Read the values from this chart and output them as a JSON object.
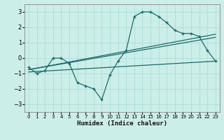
{
  "xlabel": "Humidex (Indice chaleur)",
  "bg_color": "#cceee8",
  "grid_color": "#aaddda",
  "line_color": "#1a6b6b",
  "xlim": [
    -0.5,
    23.5
  ],
  "ylim": [
    -3.5,
    3.5
  ],
  "yticks": [
    -3,
    -2,
    -1,
    0,
    1,
    2,
    3
  ],
  "xticks": [
    0,
    1,
    2,
    3,
    4,
    5,
    6,
    7,
    8,
    9,
    10,
    11,
    12,
    13,
    14,
    15,
    16,
    17,
    18,
    19,
    20,
    21,
    22,
    23
  ],
  "series1_x": [
    0,
    1,
    2,
    3,
    4,
    5,
    6,
    7,
    8,
    9,
    10,
    11,
    12,
    13,
    14,
    15,
    16,
    17,
    18,
    19,
    20,
    21,
    22,
    23
  ],
  "series1_y": [
    -0.6,
    -1.0,
    -0.8,
    0.0,
    0.0,
    -0.35,
    -1.6,
    -1.8,
    -2.0,
    -2.7,
    -1.1,
    -0.2,
    0.5,
    2.7,
    3.0,
    3.0,
    2.7,
    2.3,
    1.8,
    1.6,
    1.6,
    1.4,
    0.5,
    -0.2
  ],
  "series2_x": [
    0,
    23
  ],
  "series2_y": [
    -0.9,
    -0.2
  ],
  "series3_x": [
    0,
    23
  ],
  "series3_y": [
    -0.75,
    1.55
  ],
  "series4_x": [
    0,
    23
  ],
  "series4_y": [
    -0.75,
    1.35
  ]
}
